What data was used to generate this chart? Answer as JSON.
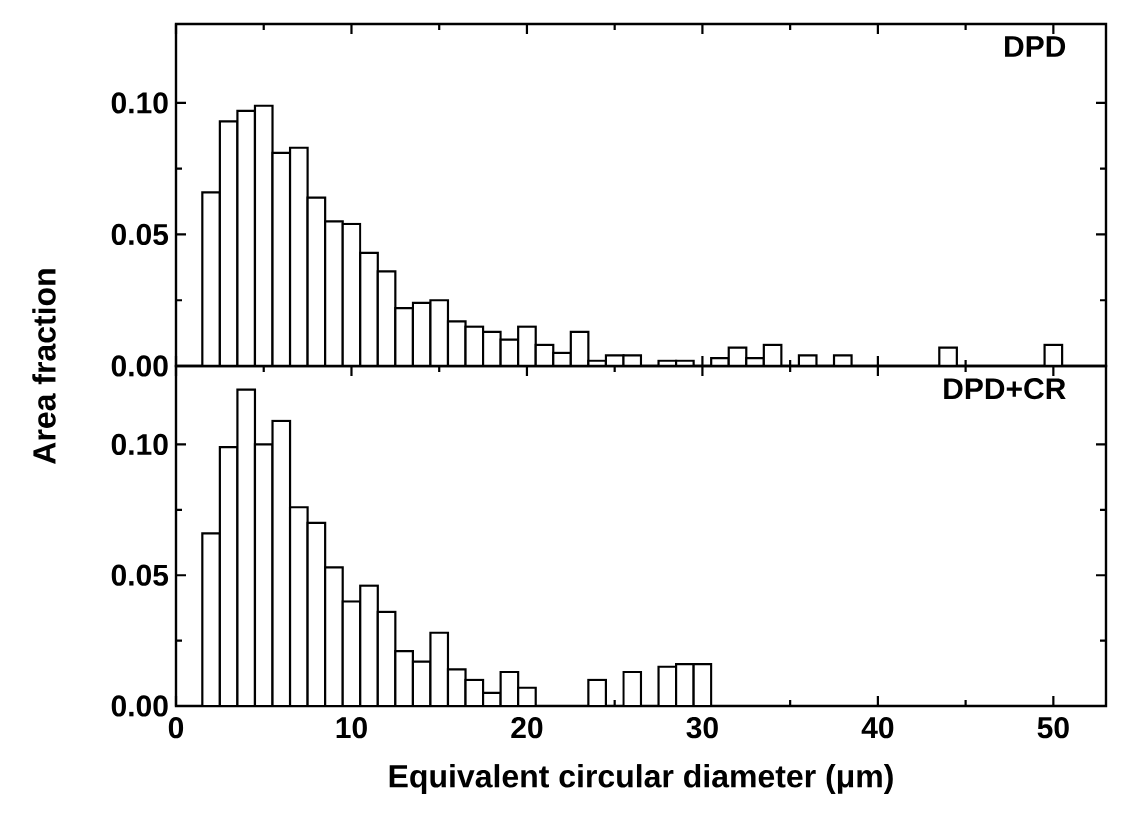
{
  "chart_data": [
    {
      "type": "histogram",
      "title": "DPD",
      "ylabel": "Area fraction",
      "color": "#ffffff",
      "bins": [
        1.5,
        2.5,
        3.5,
        4.5,
        5.5,
        6.5,
        7.5,
        8.5,
        9.5,
        10.5,
        11.5,
        12.5,
        13.5,
        14.5,
        15.5,
        16.5,
        17.5,
        18.5,
        19.5,
        20.5,
        21.5,
        22.5,
        23.5,
        24.5,
        25.5,
        26.5,
        27.5,
        28.5,
        29.5,
        30.5,
        31.5,
        32.5,
        33.5,
        34.5,
        35.5,
        36.5,
        37.5,
        38.5,
        39.5,
        40.5,
        41.5,
        42.5,
        43.5,
        44.5,
        45.5,
        46.5,
        47.5,
        48.5,
        49.5,
        50.5
      ],
      "values": [
        0.066,
        0.093,
        0.097,
        0.099,
        0.081,
        0.083,
        0.064,
        0.055,
        0.054,
        0.043,
        0.036,
        0.022,
        0.024,
        0.025,
        0.017,
        0.015,
        0.013,
        0.01,
        0.015,
        0.008,
        0.005,
        0.013,
        0.002,
        0.004,
        0.004,
        0,
        0.002,
        0.002,
        0,
        0.003,
        0.007,
        0.003,
        0.008,
        0,
        0.004,
        0,
        0.004,
        0,
        0,
        0,
        0,
        0,
        0.007,
        0,
        0,
        0,
        0,
        0,
        0.008
      ],
      "xlim": [
        0,
        53
      ],
      "xticks": [
        0,
        10,
        20,
        30,
        40,
        50
      ],
      "ylim": [
        0,
        0.13
      ],
      "yticks": [
        {
          "value": 0,
          "label": "0.00"
        },
        {
          "value": 0.05,
          "label": "0.05"
        },
        {
          "value": 0.1,
          "label": "0.10"
        }
      ],
      "tick_labels": "y"
    },
    {
      "type": "histogram",
      "title": "DPD+CR",
      "xlabel": "Equivalent circular diameter (μm)",
      "color": "#ffffff",
      "bins": [
        1.5,
        2.5,
        3.5,
        4.5,
        5.5,
        6.5,
        7.5,
        8.5,
        9.5,
        10.5,
        11.5,
        12.5,
        13.5,
        14.5,
        15.5,
        16.5,
        17.5,
        18.5,
        19.5,
        20.5,
        21.5,
        22.5,
        23.5,
        24.5,
        25.5,
        26.5,
        27.5,
        28.5,
        29.5,
        30.5,
        31.5,
        32.5,
        33.5,
        34.5,
        35.5,
        36.5,
        37.5,
        38.5,
        39.5,
        40.5,
        41.5,
        42.5,
        43.5,
        44.5,
        45.5,
        46.5,
        47.5,
        48.5,
        49.5,
        50.5
      ],
      "values": [
        0.066,
        0.099,
        0.121,
        0.1,
        0.109,
        0.076,
        0.07,
        0.053,
        0.04,
        0.046,
        0.036,
        0.021,
        0.017,
        0.028,
        0.014,
        0.01,
        0.005,
        0.013,
        0.007,
        0,
        0,
        0,
        0.01,
        0,
        0.013,
        0,
        0.015,
        0.016,
        0.016,
        0,
        0,
        0,
        0,
        0,
        0,
        0,
        0,
        0,
        0,
        0,
        0,
        0,
        0,
        0,
        0,
        0,
        0,
        0,
        0
      ],
      "xlim": [
        0,
        53
      ],
      "xticks": [
        0,
        10,
        20,
        30,
        40,
        50
      ],
      "ylim": [
        0,
        0.13
      ],
      "yticks": [
        {
          "value": 0,
          "label": "0.00"
        },
        {
          "value": 0.05,
          "label": "0.05"
        },
        {
          "value": 0.1,
          "label": "0.10"
        }
      ]
    }
  ]
}
